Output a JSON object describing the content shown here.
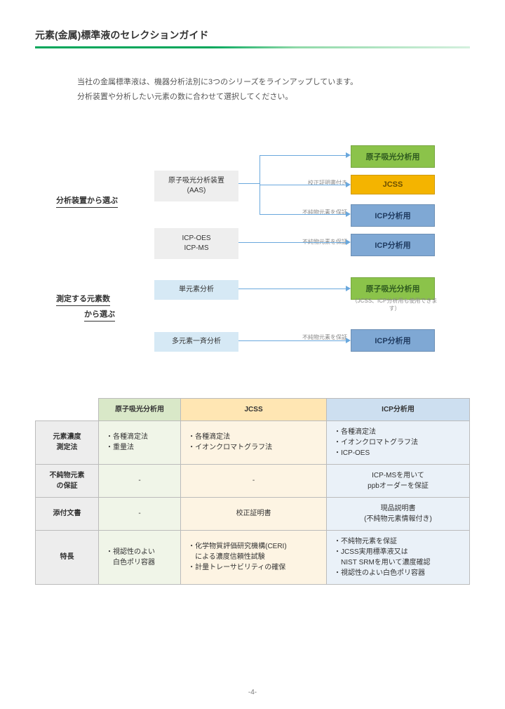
{
  "title": "元素(金属)標準液のセレクションガイド",
  "intro_l1": "当社の金属標準液は、機器分析法別に3つのシリーズをラインアップしています。",
  "intro_l2": "分析装置や分析したい元素の数に合わせて選択してください。",
  "diagram": {
    "section1_label": "分析装置から選ぶ",
    "section2_label_l1": "測定する元素数",
    "section2_label_l2": "から選ぶ",
    "src_aas_l1": "原子吸光分析装置",
    "src_aas_l2": "(AAS)",
    "src_icp_l1": "ICP-OES",
    "src_icp_l2": "ICP-MS",
    "src_single": "単元素分析",
    "src_multi": "多元素一斉分析",
    "dst_aa": "原子吸光分析用",
    "dst_jcss": "JCSS",
    "dst_icp": "ICP分析用",
    "note_cert": "校正証明書付き",
    "note_imp": "不純物元素を保証",
    "note_jcss_usable": "（JCSS、ICP分析用も使用できます）"
  },
  "table": {
    "row_headers": [
      "元素濃度\n測定法",
      "不純物元素\nの保証",
      "添付文書",
      "特長"
    ],
    "col_headers": [
      "原子吸光分析用",
      "JCSS",
      "ICP分析用"
    ],
    "r1c1": "・各種滴定法\n・重量法",
    "r1c2": "・各種滴定法\n・イオンクロマトグラフ法",
    "r1c3": "・各種滴定法\n・イオンクロマトグラフ法\n・ICP-OES",
    "r2c1": "-",
    "r2c2": "-",
    "r2c3": "ICP-MSを用いて\nppbオーダーを保証",
    "r3c1": "-",
    "r3c2": "校正証明書",
    "r3c3": "現品説明書\n(不純物元素情報付き)",
    "r4c1": "・視認性のよい\n　白色ポリ容器",
    "r4c2": "・化学物質評価研究機構(CERI)\n　による濃度信頼性試験\n・計量トレーサビリティの確保",
    "r4c3": "・不純物元素を保証\n・JCSS実用標準液又は\n　NIST SRMを用いて濃度確認\n・視認性のよい白色ポリ容器"
  },
  "page_number": "-4-"
}
